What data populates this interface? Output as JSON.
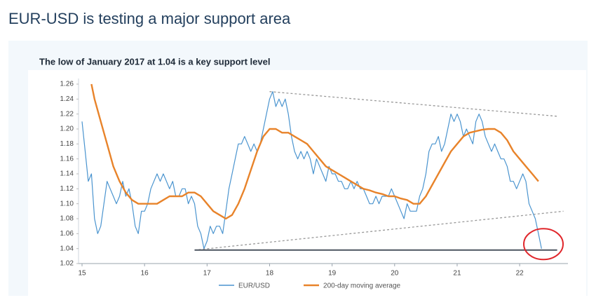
{
  "header": {
    "title": "EUR-USD is testing a major support area"
  },
  "chart_data": {
    "type": "line",
    "title": "The low of January 2017 at 1.04 is a key support level",
    "xlim": [
      15,
      22.75
    ],
    "xticks": [
      15,
      16,
      17,
      18,
      19,
      20,
      21,
      22
    ],
    "ylim": [
      1.02,
      1.26
    ],
    "yticks": [
      1.02,
      1.04,
      1.06,
      1.08,
      {
        "value": 1.1,
        "label": "1.10"
      },
      1.12,
      1.14,
      1.16,
      1.18,
      {
        "value": 1.2,
        "label": "1.20"
      },
      1.22,
      1.24,
      1.26
    ],
    "grid": false,
    "legend": "bottom",
    "series": [
      {
        "name": "EUR/USD",
        "color": "#4a94cf",
        "x": [
          15.0,
          15.05,
          15.1,
          15.15,
          15.2,
          15.25,
          15.3,
          15.35,
          15.4,
          15.45,
          15.5,
          15.55,
          15.6,
          15.65,
          15.7,
          15.75,
          15.8,
          15.85,
          15.9,
          15.95,
          16.0,
          16.05,
          16.1,
          16.15,
          16.2,
          16.25,
          16.3,
          16.35,
          16.4,
          16.45,
          16.5,
          16.55,
          16.6,
          16.65,
          16.7,
          16.75,
          16.8,
          16.85,
          16.9,
          16.95,
          17.0,
          17.05,
          17.1,
          17.15,
          17.2,
          17.25,
          17.3,
          17.35,
          17.4,
          17.45,
          17.5,
          17.55,
          17.6,
          17.65,
          17.7,
          17.75,
          17.8,
          17.85,
          17.9,
          17.95,
          18.0,
          18.05,
          18.1,
          18.15,
          18.2,
          18.25,
          18.3,
          18.35,
          18.4,
          18.45,
          18.5,
          18.55,
          18.6,
          18.65,
          18.7,
          18.75,
          18.8,
          18.85,
          18.9,
          18.95,
          19.0,
          19.05,
          19.1,
          19.15,
          19.2,
          19.25,
          19.3,
          19.35,
          19.4,
          19.45,
          19.5,
          19.55,
          19.6,
          19.65,
          19.7,
          19.75,
          19.8,
          19.85,
          19.9,
          19.95,
          20.0,
          20.05,
          20.1,
          20.15,
          20.2,
          20.25,
          20.3,
          20.35,
          20.4,
          20.45,
          20.5,
          20.55,
          20.6,
          20.65,
          20.7,
          20.75,
          20.8,
          20.85,
          20.9,
          20.95,
          21.0,
          21.05,
          21.1,
          21.15,
          21.2,
          21.25,
          21.3,
          21.35,
          21.4,
          21.45,
          21.5,
          21.55,
          21.6,
          21.65,
          21.7,
          21.75,
          21.8,
          21.85,
          21.9,
          21.95,
          22.0,
          22.05,
          22.1,
          22.15,
          22.2,
          22.25,
          22.3,
          22.35
        ],
        "values": [
          1.21,
          1.17,
          1.13,
          1.14,
          1.08,
          1.06,
          1.07,
          1.1,
          1.13,
          1.12,
          1.11,
          1.1,
          1.11,
          1.13,
          1.11,
          1.12,
          1.1,
          1.07,
          1.06,
          1.09,
          1.09,
          1.1,
          1.12,
          1.13,
          1.14,
          1.13,
          1.14,
          1.13,
          1.12,
          1.13,
          1.11,
          1.11,
          1.12,
          1.12,
          1.1,
          1.11,
          1.1,
          1.07,
          1.06,
          1.04,
          1.05,
          1.07,
          1.06,
          1.07,
          1.07,
          1.06,
          1.09,
          1.12,
          1.14,
          1.16,
          1.18,
          1.18,
          1.19,
          1.18,
          1.17,
          1.18,
          1.17,
          1.18,
          1.2,
          1.22,
          1.24,
          1.25,
          1.23,
          1.24,
          1.23,
          1.24,
          1.22,
          1.19,
          1.17,
          1.16,
          1.17,
          1.16,
          1.17,
          1.16,
          1.14,
          1.16,
          1.15,
          1.14,
          1.13,
          1.15,
          1.14,
          1.14,
          1.13,
          1.13,
          1.12,
          1.12,
          1.13,
          1.12,
          1.13,
          1.12,
          1.12,
          1.11,
          1.1,
          1.1,
          1.11,
          1.1,
          1.11,
          1.11,
          1.11,
          1.12,
          1.11,
          1.1,
          1.09,
          1.08,
          1.1,
          1.09,
          1.09,
          1.09,
          1.11,
          1.12,
          1.14,
          1.17,
          1.18,
          1.18,
          1.19,
          1.17,
          1.18,
          1.2,
          1.22,
          1.21,
          1.22,
          1.21,
          1.19,
          1.2,
          1.19,
          1.18,
          1.21,
          1.22,
          1.21,
          1.19,
          1.18,
          1.17,
          1.18,
          1.17,
          1.16,
          1.16,
          1.15,
          1.13,
          1.13,
          1.12,
          1.13,
          1.14,
          1.13,
          1.1,
          1.09,
          1.08,
          1.06,
          1.04
        ]
      },
      {
        "name": "200-day moving average",
        "color": "#e8832a",
        "x": [
          15.15,
          15.2,
          15.3,
          15.4,
          15.5,
          15.6,
          15.7,
          15.8,
          15.9,
          16.0,
          16.1,
          16.2,
          16.3,
          16.4,
          16.5,
          16.6,
          16.7,
          16.8,
          16.9,
          17.0,
          17.1,
          17.2,
          17.3,
          17.4,
          17.5,
          17.6,
          17.7,
          17.8,
          17.9,
          18.0,
          18.1,
          18.2,
          18.3,
          18.4,
          18.5,
          18.6,
          18.7,
          18.8,
          18.9,
          19.0,
          19.1,
          19.2,
          19.3,
          19.4,
          19.5,
          19.6,
          19.7,
          19.8,
          19.9,
          20.0,
          20.1,
          20.2,
          20.3,
          20.4,
          20.5,
          20.6,
          20.7,
          20.8,
          20.9,
          21.0,
          21.1,
          21.2,
          21.3,
          21.4,
          21.5,
          21.6,
          21.7,
          21.8,
          21.9,
          22.0,
          22.1,
          22.2,
          22.3
        ],
        "values": [
          1.26,
          1.24,
          1.21,
          1.18,
          1.15,
          1.13,
          1.115,
          1.105,
          1.1,
          1.1,
          1.1,
          1.1,
          1.105,
          1.11,
          1.11,
          1.11,
          1.115,
          1.115,
          1.11,
          1.1,
          1.09,
          1.085,
          1.08,
          1.085,
          1.1,
          1.12,
          1.145,
          1.17,
          1.19,
          1.2,
          1.2,
          1.195,
          1.195,
          1.19,
          1.185,
          1.18,
          1.17,
          1.16,
          1.15,
          1.145,
          1.14,
          1.135,
          1.13,
          1.125,
          1.12,
          1.118,
          1.115,
          1.113,
          1.11,
          1.11,
          1.107,
          1.105,
          1.1,
          1.1,
          1.11,
          1.125,
          1.14,
          1.155,
          1.17,
          1.18,
          1.19,
          1.195,
          1.197,
          1.199,
          1.2,
          1.2,
          1.195,
          1.185,
          1.17,
          1.16,
          1.15,
          1.14,
          1.13
        ]
      }
    ],
    "reference_lines": [
      {
        "x": [
          18.0,
          22.6
        ],
        "y": [
          1.25,
          1.217
        ],
        "style": "dotted",
        "color": "#999999"
      },
      {
        "x": [
          16.8,
          22.7
        ],
        "y": [
          1.038,
          1.09
        ],
        "style": "dotted",
        "color": "#999999"
      },
      {
        "x": [
          16.8,
          22.6
        ],
        "y": [
          1.038,
          1.038
        ],
        "style": "solid",
        "color": "#4d5560"
      }
    ],
    "highlight": {
      "x": 22.38,
      "y": 1.046,
      "color": "#e0262b"
    }
  }
}
